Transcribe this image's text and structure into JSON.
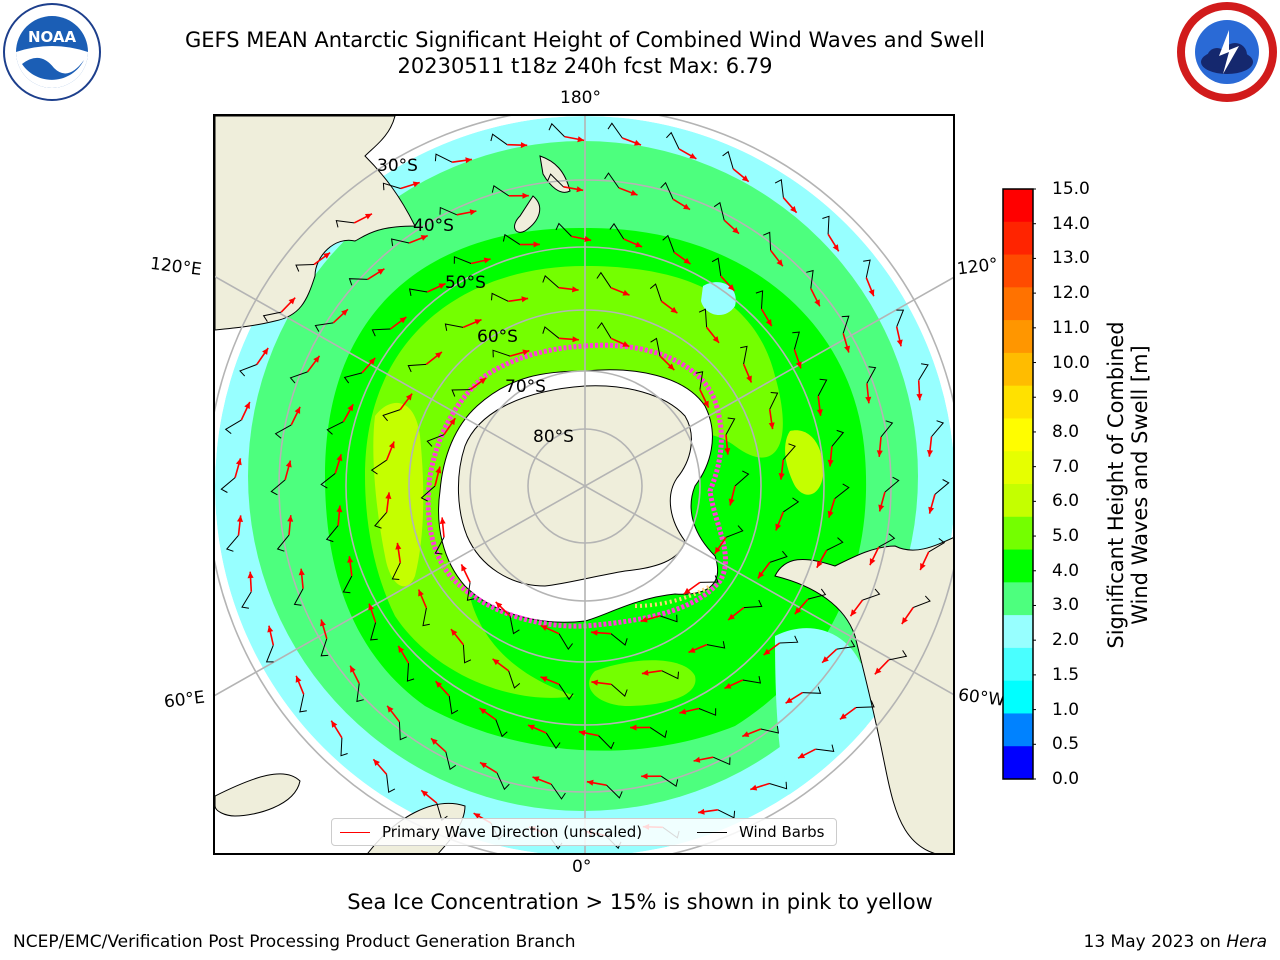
{
  "title": {
    "line1": "GEFS MEAN Antarctic Significant Height of Combined Wind Waves and Swell",
    "line2": "20230511 t18z 240h fcst   Max: 6.79"
  },
  "logos": {
    "left": {
      "icon": "noaa-logo-icon",
      "text": "NOAA",
      "ring_text": "NATIONAL OCEANIC AND ATMOSPHERIC ADMINISTRATION · U.S. DEPARTMENT OF COMMERCE"
    },
    "right": {
      "icon": "nws-logo-icon",
      "ring_text": "NATIONAL WEATHER SERVICE"
    }
  },
  "map": {
    "projection": "south-polar-stereographic",
    "longitude_labels": {
      "top": "180°",
      "bottom": "0°",
      "upper_left": "120°E",
      "lower_left": "60°E",
      "upper_right": "120°",
      "lower_right": "60°W"
    },
    "latitude_labels": [
      "30°S",
      "40°S",
      "50°S",
      "60°S",
      "70°S",
      "80°S"
    ],
    "colors": {
      "land": "#efeedb",
      "ice_shelf": "#ffffff",
      "graticule": "#b4b4b4",
      "sea_ice_edge": "#ff3fd8",
      "arrow": "#ff0000",
      "barb": "#000000"
    }
  },
  "colorbar": {
    "label_line1": "Significant Height of Combined",
    "label_line2": "Wind Waves and Swell [m]",
    "ticks": [
      "15.0",
      "14.0",
      "13.0",
      "12.0",
      "11.0",
      "10.0",
      "9.0",
      "8.0",
      "7.0",
      "6.0",
      "5.0",
      "4.0",
      "3.0",
      "2.0",
      "1.5",
      "1.0",
      "0.5",
      "0.0"
    ],
    "colors_top_to_bottom": [
      "#ff0000",
      "#ff2400",
      "#ff4b00",
      "#ff7200",
      "#ff9600",
      "#ffbc00",
      "#ffe100",
      "#fffd00",
      "#e6ff00",
      "#c4ff00",
      "#74ff00",
      "#00ff00",
      "#4dff7e",
      "#97ffff",
      "#49ffff",
      "#00ffff",
      "#0082ff",
      "#0000ff"
    ]
  },
  "legend": {
    "wave_direction": {
      "label": "Primary Wave Direction (unscaled)",
      "color": "#ff0000"
    },
    "wind_barbs": {
      "label": "Wind Barbs",
      "color": "#000000"
    }
  },
  "note": "Sea Ice Concentration > 15% is shown in pink to yellow",
  "footer": {
    "left": "NCEP/EMC/Verification Post Processing Product Generation Branch",
    "date": "13 May 2023 on ",
    "host": "Hera"
  }
}
